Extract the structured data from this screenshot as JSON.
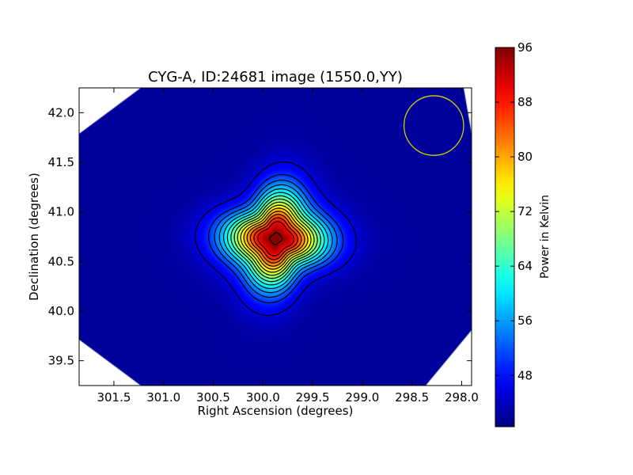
{
  "chart_data": {
    "type": "heatmap",
    "title": "CYG-A, ID:24681 image (1550.0,YY)",
    "xlabel": "Right Ascension (degrees)",
    "ylabel": "Declination (degrees)",
    "xlim": [
      301.85,
      297.9
    ],
    "ylim": [
      39.25,
      42.25
    ],
    "x_ticks": [
      301.5,
      301.0,
      300.5,
      300.0,
      299.5,
      299.0,
      298.5,
      298.0
    ],
    "x_tick_labels": [
      "301.5",
      "301.0",
      "300.5",
      "300.0",
      "299.5",
      "299.0",
      "298.5",
      "298.0"
    ],
    "y_ticks": [
      39.5,
      40.0,
      40.5,
      41.0,
      41.5,
      42.0
    ],
    "y_tick_labels": [
      "39.5",
      "40.0",
      "40.5",
      "41.0",
      "41.5",
      "42.0"
    ],
    "colorbar": {
      "label": "Power in Kelvin",
      "range": [
        40.5,
        96
      ],
      "ticks": [
        48,
        56,
        64,
        72,
        80,
        88,
        96
      ],
      "tick_labels": [
        "48",
        "56",
        "64",
        "72",
        "80",
        "88",
        "96"
      ],
      "colormap": "jet"
    },
    "source": {
      "ra": 299.87,
      "dec": 40.73,
      "peak_kelvin": 96,
      "background_kelvin": 42
    },
    "contour_levels": [
      45.5,
      50,
      53,
      56,
      59,
      62,
      65,
      68,
      71,
      74,
      77,
      80,
      83,
      86,
      89,
      95
    ],
    "beam_circle": {
      "ra": 298.28,
      "dec": 41.87,
      "radius_deg": 0.3,
      "color": "#cccc00"
    },
    "masked_corners": true,
    "mask_color": "#ffffff"
  }
}
